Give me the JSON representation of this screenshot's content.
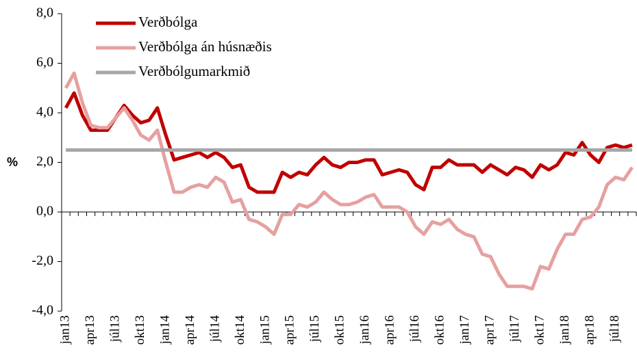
{
  "chart_data": {
    "type": "line",
    "categories": [
      "jan13",
      null,
      null,
      "apr13",
      null,
      null,
      "júl13",
      null,
      null,
      "okt13",
      null,
      null,
      "jan14",
      null,
      null,
      "apr14",
      null,
      null,
      "júl14",
      null,
      null,
      "okt14",
      null,
      null,
      "jan15",
      null,
      null,
      "apr15",
      null,
      null,
      "júl15",
      null,
      null,
      "okt15",
      null,
      null,
      "jan16",
      null,
      null,
      "apr16",
      null,
      null,
      "júl16",
      null,
      null,
      "okt16",
      null,
      null,
      "jan17",
      null,
      null,
      "apr17",
      null,
      null,
      "júl17",
      null,
      null,
      "okt17",
      null,
      null,
      "jan18",
      null,
      null,
      "apr18",
      null,
      null,
      "júl18",
      null,
      null
    ],
    "ylabel": "%",
    "ylim": [
      -4,
      8
    ],
    "yticks": [
      {
        "value": -4,
        "label": "-4,0"
      },
      {
        "value": -2,
        "label": "-2,0"
      },
      {
        "value": 0,
        "label": "0,0"
      },
      {
        "value": 2,
        "label": "2,0"
      },
      {
        "value": 4,
        "label": "4,0"
      },
      {
        "value": 6,
        "label": "6,0"
      },
      {
        "value": 8,
        "label": "8,0"
      }
    ],
    "legend": "upper left",
    "series": [
      {
        "name": "Verðbólga",
        "color": "#c00000",
        "values": [
          4.2,
          4.8,
          3.9,
          3.3,
          3.3,
          3.3,
          3.8,
          4.3,
          3.9,
          3.6,
          3.7,
          4.2,
          3.1,
          2.1,
          2.2,
          2.3,
          2.4,
          2.2,
          2.4,
          2.2,
          1.8,
          1.9,
          1.0,
          0.8,
          0.8,
          0.8,
          1.6,
          1.4,
          1.6,
          1.5,
          1.9,
          2.2,
          1.9,
          1.8,
          2.0,
          2.0,
          2.1,
          2.1,
          1.5,
          1.6,
          1.7,
          1.6,
          1.1,
          0.9,
          1.8,
          1.8,
          2.1,
          1.9,
          1.9,
          1.9,
          1.6,
          1.9,
          1.7,
          1.5,
          1.8,
          1.7,
          1.4,
          1.9,
          1.7,
          1.9,
          2.4,
          2.3,
          2.8,
          2.3,
          2.0,
          2.6,
          2.7,
          2.6,
          2.7
        ]
      },
      {
        "name": "Verðbólga án húsnæðis",
        "color": "#e6a0a0",
        "values": [
          5.0,
          5.6,
          4.4,
          3.5,
          3.4,
          3.4,
          3.8,
          4.2,
          3.7,
          3.1,
          2.9,
          3.3,
          2.0,
          0.8,
          0.8,
          1.0,
          1.1,
          1.0,
          1.4,
          1.2,
          0.4,
          0.5,
          -0.3,
          -0.4,
          -0.6,
          -0.9,
          -0.1,
          -0.1,
          0.3,
          0.2,
          0.4,
          0.8,
          0.5,
          0.3,
          0.3,
          0.4,
          0.6,
          0.7,
          0.2,
          0.2,
          0.2,
          0.0,
          -0.6,
          -0.9,
          -0.4,
          -0.5,
          -0.3,
          -0.7,
          -0.9,
          -1.0,
          -1.7,
          -1.8,
          -2.5,
          -3.0,
          -3.0,
          -3.0,
          -3.1,
          -2.2,
          -2.3,
          -1.5,
          -0.9,
          -0.9,
          -0.3,
          -0.2,
          0.2,
          1.1,
          1.4,
          1.3,
          1.8
        ]
      },
      {
        "name": "Verðbólgumarkmið",
        "color": "#a6a6a6",
        "values": [
          2.5,
          2.5,
          2.5,
          2.5,
          2.5,
          2.5,
          2.5,
          2.5,
          2.5,
          2.5,
          2.5,
          2.5,
          2.5,
          2.5,
          2.5,
          2.5,
          2.5,
          2.5,
          2.5,
          2.5,
          2.5,
          2.5,
          2.5,
          2.5,
          2.5,
          2.5,
          2.5,
          2.5,
          2.5,
          2.5,
          2.5,
          2.5,
          2.5,
          2.5,
          2.5,
          2.5,
          2.5,
          2.5,
          2.5,
          2.5,
          2.5,
          2.5,
          2.5,
          2.5,
          2.5,
          2.5,
          2.5,
          2.5,
          2.5,
          2.5,
          2.5,
          2.5,
          2.5,
          2.5,
          2.5,
          2.5,
          2.5,
          2.5,
          2.5,
          2.5,
          2.5,
          2.5,
          2.5,
          2.5,
          2.5,
          2.5,
          2.5,
          2.5,
          2.5
        ]
      }
    ]
  }
}
